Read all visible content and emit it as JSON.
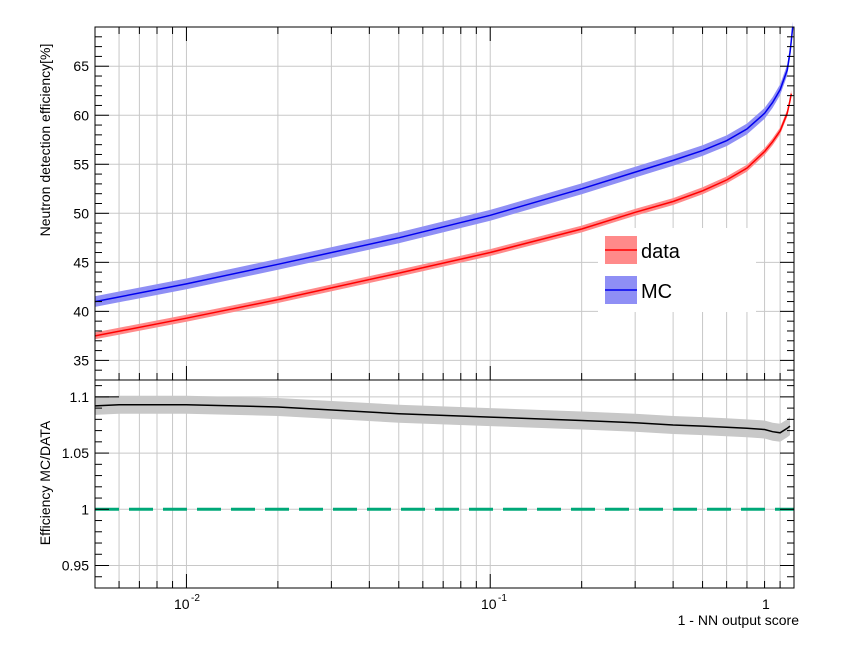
{
  "chart_data": [
    {
      "type": "line",
      "xscale": "log",
      "xlim": [
        0.005,
        1
      ],
      "ylim": [
        33,
        69
      ],
      "ylabel": "Neutron detection efficiency[%]",
      "xtick_labels": {
        "major1": "10",
        "major1_exp": "-2",
        "major2": "10",
        "major2_exp": "-1",
        "major3": "1"
      },
      "yticks": [
        35,
        40,
        45,
        50,
        55,
        60,
        65
      ],
      "grid": true,
      "legend": {
        "position": "right",
        "entries": [
          "data",
          "MC"
        ]
      },
      "series": [
        {
          "name": "data",
          "color": "#ff0000",
          "band_color": "#ff8a8a",
          "x": [
            0.005,
            0.01,
            0.02,
            0.05,
            0.1,
            0.2,
            0.3,
            0.4,
            0.5,
            0.6,
            0.7,
            0.8,
            0.85,
            0.9,
            0.95,
            0.97,
            0.98
          ],
          "y": [
            37.5,
            39.3,
            41.2,
            43.9,
            46.0,
            48.4,
            50.1,
            51.2,
            52.3,
            53.4,
            54.6,
            56.3,
            57.3,
            58.4,
            60.2,
            61.5,
            62.2
          ],
          "band": 0.35
        },
        {
          "name": "MC",
          "color": "#0000ee",
          "band_color": "#8f8ff5",
          "x": [
            0.005,
            0.01,
            0.02,
            0.05,
            0.1,
            0.2,
            0.3,
            0.4,
            0.5,
            0.6,
            0.7,
            0.8,
            0.85,
            0.9,
            0.95,
            0.97,
            0.98,
            0.99
          ],
          "y": [
            41.0,
            42.8,
            44.8,
            47.5,
            49.8,
            52.5,
            54.2,
            55.4,
            56.4,
            57.4,
            58.6,
            60.2,
            61.3,
            62.6,
            64.6,
            66.4,
            67.6,
            69.0
          ],
          "band": 0.55
        }
      ]
    },
    {
      "type": "line",
      "xscale": "log",
      "xlim": [
        0.005,
        1
      ],
      "ylim": [
        0.93,
        1.115
      ],
      "ylabel": "Efficiency MC/DATA",
      "xlabel": "1 - NN output score",
      "yticks": [
        0.95,
        1,
        1.05,
        1.1
      ],
      "ytick_labels": [
        "0.95",
        "1",
        "1.05",
        "1.1"
      ],
      "grid": true,
      "reference_line": {
        "y": 1.0,
        "color": "#00a878",
        "style": "dashed"
      },
      "series": [
        {
          "name": "MC/DATA",
          "color": "#000000",
          "band_color": "#c8c8c8",
          "x": [
            0.005,
            0.006,
            0.01,
            0.02,
            0.05,
            0.1,
            0.2,
            0.3,
            0.4,
            0.5,
            0.6,
            0.7,
            0.8,
            0.85,
            0.9,
            0.95,
            0.97
          ],
          "y": [
            1.092,
            1.093,
            1.093,
            1.091,
            1.085,
            1.082,
            1.079,
            1.077,
            1.075,
            1.074,
            1.073,
            1.072,
            1.071,
            1.069,
            1.068,
            1.072,
            1.074
          ],
          "band": 0.008
        }
      ],
      "extra_segment": {
        "x": [
          0.005,
          0.006
        ],
        "y": [
          1.1,
          1.1
        ]
      }
    }
  ]
}
